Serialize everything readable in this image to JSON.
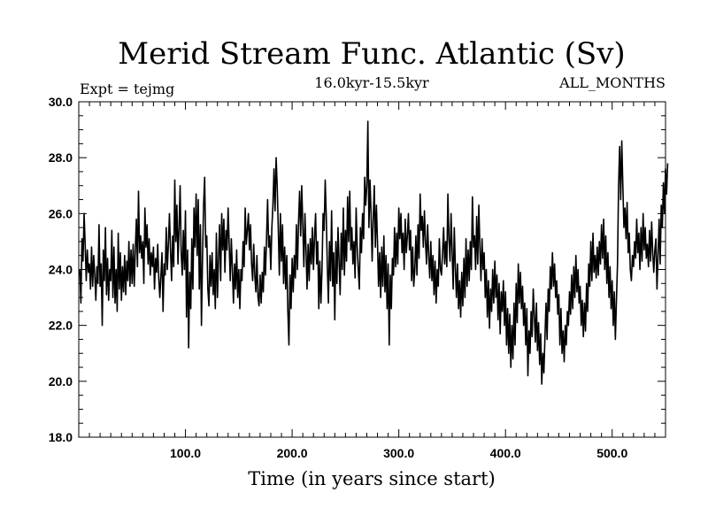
{
  "chart_data": {
    "type": "line",
    "title": "Merid Stream Func. Atlantic (Sv)",
    "subtitle": "16.0kyr-15.5kyr",
    "left_annotation": "Expt = tejmg",
    "right_annotation": "ALL_MONTHS",
    "xlabel": "Time (in years since start)",
    "ylabel": "",
    "xlim": [
      0,
      550
    ],
    "ylim": [
      18.0,
      30.0
    ],
    "x_ticks": [
      100,
      200,
      300,
      400,
      500
    ],
    "x_tick_labels": [
      "100.0",
      "200.0",
      "300.0",
      "400.0",
      "500.0"
    ],
    "y_ticks": [
      18,
      20,
      22,
      24,
      26,
      28,
      30
    ],
    "y_tick_labels": [
      "18.0",
      "20.0",
      "22.0",
      "24.0",
      "26.0",
      "28.0",
      "30.0"
    ],
    "grid": false,
    "series": [
      {
        "name": "Merid Stream Func. Atlantic",
        "x_start": 1,
        "x_step": 1,
        "values": [
          24.0,
          22.8,
          25.1,
          24.3,
          26.0,
          24.9,
          23.6,
          24.7,
          23.9,
          24.2,
          23.3,
          24.8,
          23.4,
          24.5,
          23.8,
          22.9,
          24.1,
          23.5,
          25.6,
          23.4,
          24.2,
          22.0,
          24.7,
          23.6,
          25.5,
          23.1,
          24.4,
          22.9,
          24.0,
          23.6,
          25.4,
          23.0,
          24.8,
          22.8,
          24.0,
          22.5,
          25.3,
          23.3,
          24.6,
          22.9,
          24.1,
          23.2,
          24.5,
          23.1,
          24.3,
          23.6,
          25.0,
          23.4,
          24.7,
          23.5,
          24.9,
          23.4,
          24.7,
          25.8,
          24.1,
          26.8,
          24.6,
          25.2,
          24.4,
          25.0,
          23.5,
          26.2,
          24.8,
          25.6,
          24.2,
          25.1,
          23.8,
          24.6,
          24.1,
          24.8,
          23.3,
          24.4,
          23.9,
          24.9,
          23.7,
          23.0,
          23.8,
          24.6,
          22.5,
          24.2,
          23.8,
          25.5,
          24.0,
          24.9,
          26.0,
          24.7,
          23.6,
          25.2,
          24.1,
          27.2,
          25.0,
          26.3,
          24.2,
          25.5,
          27.0,
          24.6,
          23.8,
          25.4,
          24.0,
          26.1,
          22.3,
          24.7,
          21.2,
          23.9,
          22.6,
          25.1,
          23.3,
          26.2,
          24.8,
          26.7,
          24.5,
          26.5,
          23.3,
          25.6,
          22.0,
          24.4,
          26.3,
          27.3,
          24.8,
          25.2,
          23.3,
          22.7,
          24.5,
          23.4,
          24.6,
          23.1,
          24.0,
          22.6,
          25.3,
          23.0,
          24.4,
          25.6,
          23.6,
          26.0,
          24.7,
          25.8,
          23.9,
          25.4,
          24.7,
          26.2,
          24.9,
          23.6,
          25.1,
          24.0,
          22.8,
          24.2,
          23.3,
          24.7,
          23.0,
          24.0,
          22.6,
          24.0,
          23.6,
          25.0,
          24.1,
          26.2,
          24.9,
          25.4,
          26.0,
          24.7,
          25.6,
          24.2,
          23.6,
          24.9,
          23.8,
          23.2,
          24.5,
          23.0,
          22.7,
          23.8,
          22.8,
          23.9,
          23.2,
          24.8,
          23.8,
          25.1,
          26.5,
          24.8,
          25.2,
          24.0,
          25.5,
          26.3,
          27.6,
          26.1,
          28.0,
          27.0,
          25.5,
          23.8,
          26.0,
          24.3,
          25.6,
          23.5,
          24.8,
          23.3,
          24.5,
          22.5,
          21.3,
          23.8,
          22.6,
          24.4,
          23.2,
          24.5,
          23.7,
          25.6,
          24.0,
          25.7,
          26.8,
          25.2,
          27.0,
          25.6,
          24.1,
          26.0,
          24.7,
          23.3,
          24.9,
          23.6,
          25.1,
          24.2,
          25.5,
          24.0,
          25.2,
          26.0,
          24.2,
          25.0,
          22.6,
          24.3,
          22.8,
          24.0,
          26.0,
          25.4,
          27.2,
          25.9,
          24.1,
          22.8,
          25.0,
          23.6,
          26.1,
          23.4,
          24.6,
          22.2,
          25.0,
          23.5,
          25.5,
          24.3,
          23.1,
          25.3,
          24.0,
          26.2,
          23.8,
          25.4,
          24.3,
          26.6,
          25.0,
          26.8,
          24.7,
          25.5,
          24.2,
          25.0,
          23.7,
          26.2,
          24.8,
          24.0,
          23.3,
          25.5,
          24.6,
          26.0,
          25.1,
          27.3,
          26.3,
          27.0,
          29.3,
          25.5,
          27.2,
          26.0,
          24.3,
          25.8,
          27.0,
          24.8,
          26.3,
          25.0,
          23.4,
          24.6,
          23.0,
          24.8,
          23.4,
          25.2,
          23.2,
          24.5,
          22.6,
          24.2,
          21.3,
          23.8,
          22.6,
          24.4,
          23.8,
          25.5,
          24.1,
          25.3,
          24.2,
          26.2,
          25.1,
          26.0,
          24.6,
          25.3,
          24.0,
          25.8,
          24.6,
          25.2,
          26.0,
          24.7,
          25.4,
          23.6,
          24.8,
          23.4,
          24.0,
          25.2,
          23.8,
          25.6,
          24.4,
          26.7,
          25.4,
          25.9,
          24.8,
          26.1,
          25.0,
          24.2,
          25.6,
          24.5,
          23.7,
          25.0,
          23.6,
          24.5,
          23.1,
          24.3,
          22.8,
          24.0,
          23.4,
          25.1,
          24.0,
          23.8,
          24.6,
          25.5,
          24.2,
          25.0,
          24.1,
          26.7,
          25.1,
          24.3,
          26.0,
          24.6,
          23.3,
          25.5,
          24.1,
          23.0,
          24.2,
          22.6,
          23.6,
          22.3,
          23.9,
          22.7,
          24.4,
          23.0,
          25.1,
          23.4,
          24.7,
          23.6,
          25.0,
          24.0,
          26.6,
          24.8,
          25.2,
          24.0,
          25.9,
          24.2,
          26.3,
          24.8,
          23.6,
          25.1,
          24.0,
          24.6,
          23.0,
          24.0,
          22.3,
          23.6,
          21.9,
          23.3,
          22.5,
          24.0,
          22.8,
          24.3,
          23.0,
          23.8,
          22.2,
          23.5,
          21.7,
          23.2,
          22.5,
          23.6,
          22.0,
          23.2,
          21.3,
          22.6,
          21.0,
          22.4,
          20.5,
          22.0,
          20.8,
          22.8,
          21.3,
          23.5,
          22.1,
          24.2,
          22.8,
          23.9,
          22.6,
          23.4,
          22.0,
          22.8,
          21.3,
          22.6,
          20.2,
          21.8,
          21.0,
          22.5,
          21.6,
          23.3,
          22.4,
          21.4,
          22.8,
          21.1,
          22.1,
          20.6,
          21.7,
          19.9,
          21.0,
          20.3,
          21.6,
          22.8,
          21.5,
          23.3,
          22.5,
          24.1,
          23.3,
          24.6,
          23.4,
          24.2,
          23.0,
          23.6,
          22.4,
          23.1,
          21.3,
          22.6,
          21.0,
          21.8,
          20.7,
          22.0,
          21.3,
          22.5,
          22.0,
          23.2,
          22.4,
          23.8,
          22.6,
          24.1,
          23.0,
          24.5,
          23.2,
          24.0,
          22.8,
          23.4,
          22.0,
          22.9,
          21.6,
          22.8,
          21.8,
          23.5,
          22.5,
          24.2,
          23.4,
          25.0,
          23.6,
          25.3,
          23.9,
          24.5,
          23.7,
          24.8,
          23.8,
          25.0,
          24.2,
          25.6,
          24.4,
          25.8,
          24.0,
          25.2,
          23.5,
          24.6,
          23.0,
          24.1,
          22.6,
          23.6,
          22.0,
          23.2,
          21.5,
          22.9,
          24.2,
          27.0,
          28.4,
          26.5,
          28.6,
          27.0,
          25.5,
          26.2,
          25.1,
          26.4,
          24.6,
          25.3,
          24.0,
          23.6,
          24.5,
          24.1,
          25.0,
          24.4,
          25.8,
          24.6,
          25.3,
          24.0,
          25.5,
          24.3,
          26.0,
          24.7,
          25.5,
          24.4,
          24.9,
          24.1,
          25.4,
          24.3,
          25.7,
          24.6,
          23.9,
          24.7,
          25.1,
          23.3,
          24.5,
          25.8,
          24.2,
          26.3,
          25.5,
          27.1,
          26.0,
          27.6,
          26.7,
          27.8
        ]
      }
    ]
  }
}
